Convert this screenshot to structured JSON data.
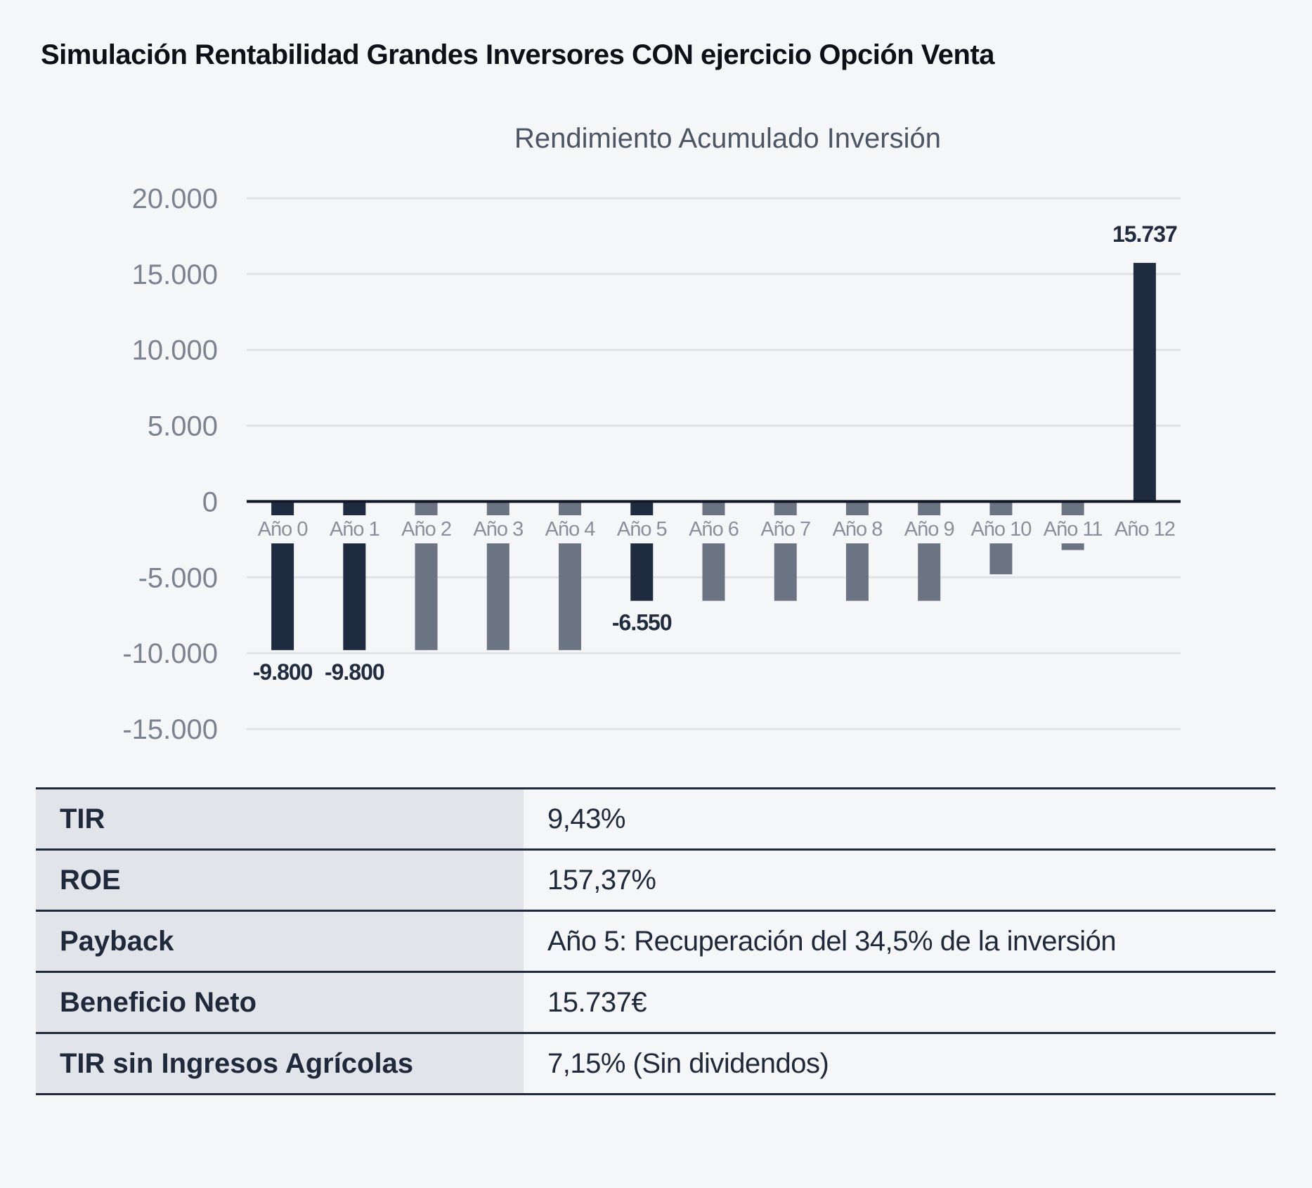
{
  "title": "Simulación Rentabilidad Grandes Inversores CON ejercicio Opción Venta",
  "chart_data": {
    "type": "bar",
    "title": "Rendimiento Acumulado Inversión",
    "xlabel": "",
    "ylabel": "",
    "ylim": [
      -15000,
      20000
    ],
    "yticks": [
      20000,
      15000,
      10000,
      5000,
      0,
      -5000,
      -10000,
      -15000
    ],
    "ytick_labels": [
      "20.000",
      "15.000",
      "10.000",
      "5.000",
      "0",
      "-5.000",
      "-10.000",
      "-15.000"
    ],
    "categories": [
      "Año 0",
      "Año 1",
      "Año 2",
      "Año 3",
      "Año 4",
      "Año 5",
      "Año 6",
      "Año 7",
      "Año 8",
      "Año 9",
      "Año 10",
      "Año 11",
      "Año 12"
    ],
    "values": [
      -9800,
      -9800,
      -9800,
      -9800,
      -9800,
      -6550,
      -6550,
      -6550,
      -6550,
      -6550,
      -4800,
      -3200,
      15737
    ],
    "highlighted": [
      true,
      true,
      false,
      false,
      false,
      true,
      false,
      false,
      false,
      false,
      false,
      false,
      true
    ],
    "data_labels": [
      "-9.800",
      "-9.800",
      "",
      "",
      "",
      "-6.550",
      "",
      "",
      "",
      "",
      "",
      "",
      "15.737"
    ],
    "grid": true,
    "colors": {
      "highlight": "#1f2b3e",
      "normal": "#6b7483",
      "grid": "#e0e2e6",
      "axis": "#111827"
    }
  },
  "table": [
    {
      "label": "TIR",
      "value": "9,43%"
    },
    {
      "label": "ROE",
      "value": "157,37%"
    },
    {
      "label": "Payback",
      "value": "Año 5:  Recuperación del 34,5% de la inversión"
    },
    {
      "label": "Beneficio Neto",
      "value": "15.737€"
    },
    {
      "label": "TIR sin Ingresos Agrícolas",
      "value": "7,15% (Sin dividendos)"
    }
  ]
}
